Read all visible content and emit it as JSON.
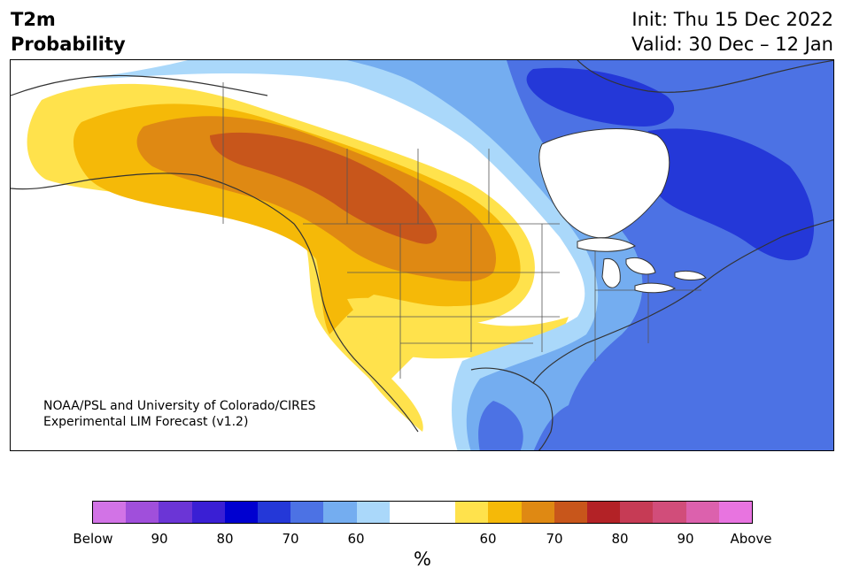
{
  "header": {
    "variable": "T2m",
    "product": "Probability",
    "init": "Init: Thu 15 Dec 2022",
    "valid": "Valid: 30 Dec – 12 Jan"
  },
  "credit": {
    "line1": "NOAA/PSL and University of Colorado/CIRES",
    "line2": "Experimental LIM Forecast (v1.2)"
  },
  "legend": {
    "unit": "%",
    "below_label": "Below",
    "above_label": "Above",
    "ticks": [
      "90",
      "80",
      "70",
      "60",
      "60",
      "70",
      "80",
      "90"
    ],
    "colors": [
      "#d273e6",
      "#a04fdb",
      "#6b35d6",
      "#3a1fd4",
      "#0000d0",
      "#2438d8",
      "#4c72e4",
      "#74adf0",
      "#aad8fa",
      "#ffffff",
      "#ffffff",
      "#ffe24c",
      "#f5b908",
      "#df8913",
      "#c8561b",
      "#b32226",
      "#c63b55",
      "#d14d7a",
      "#dc61ad",
      "#e874e0"
    ]
  },
  "map": {
    "region": "North America",
    "fill_colors": {
      "below_90": "#2438d8",
      "below_80": "#4c72e4",
      "below_70": "#74adf0",
      "below_60": "#aad8fa",
      "above_60": "#ffe24c",
      "above_70": "#f5b908",
      "above_80": "#df8913",
      "above_90": "#c8561b"
    }
  }
}
